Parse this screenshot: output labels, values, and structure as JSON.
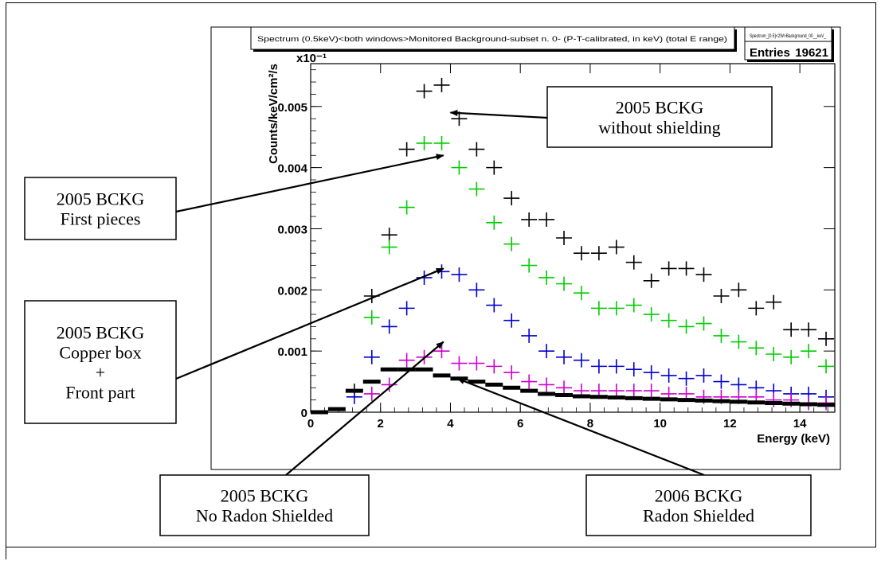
{
  "chart_data": {
    "type": "scatter",
    "title": "Spectrum (0.5keV)<both windows>Monitored Background-subset n. 0- (P-T-calibrated, in keV) (total E range)",
    "stats": {
      "name": "Spectrum_[0.5]<2W>Background_00__keV_",
      "entries_label": "Entries",
      "entries_value": "19621"
    },
    "xlabel": "Energy  (keV)",
    "ylabel": "Counts/keV/cm²/s",
    "y_exponent": "x10⁻¹",
    "xlim": [
      0,
      15
    ],
    "ylim": [
      0,
      0.0057
    ],
    "x_ticks": [
      "0",
      "2",
      "4",
      "6",
      "8",
      "10",
      "12",
      "14"
    ],
    "y_ticks": [
      "0",
      "0.001",
      "0.002",
      "0.003",
      "0.004",
      "0.005"
    ],
    "bin_width": 0.5,
    "series": [
      {
        "color": "#000000",
        "style": "cross",
        "x": [
          1.25,
          1.75,
          2.25,
          2.75,
          3.25,
          3.75,
          4.25,
          4.75,
          5.25,
          5.75,
          6.25,
          6.75,
          7.25,
          7.75,
          8.25,
          8.75,
          9.25,
          9.75,
          10.25,
          10.75,
          11.25,
          11.75,
          12.25,
          12.75,
          13.25,
          13.75,
          14.25,
          14.75
        ],
        "y": [
          0.00035,
          0.0019,
          0.0029,
          0.0043,
          0.00525,
          0.00535,
          0.0048,
          0.0043,
          0.004,
          0.0035,
          0.00315,
          0.00315,
          0.00285,
          0.0026,
          0.0026,
          0.0027,
          0.00245,
          0.00215,
          0.00235,
          0.00235,
          0.00225,
          0.0019,
          0.002,
          0.0017,
          0.0018,
          0.00135,
          0.00135,
          0.0012
        ]
      },
      {
        "color": "#00cc00",
        "style": "cross",
        "x": [
          1.75,
          2.25,
          2.75,
          3.25,
          3.75,
          4.25,
          4.75,
          5.25,
          5.75,
          6.25,
          6.75,
          7.25,
          7.75,
          8.25,
          8.75,
          9.25,
          9.75,
          10.25,
          10.75,
          11.25,
          11.75,
          12.25,
          12.75,
          13.25,
          13.75,
          14.25,
          14.75
        ],
        "y": [
          0.00155,
          0.0027,
          0.00335,
          0.0044,
          0.0044,
          0.004,
          0.00365,
          0.0031,
          0.00275,
          0.0024,
          0.0022,
          0.0021,
          0.00195,
          0.0017,
          0.0017,
          0.00175,
          0.0016,
          0.0015,
          0.0014,
          0.00145,
          0.00125,
          0.00115,
          0.00105,
          0.00095,
          0.0009,
          0.001,
          0.00075
        ]
      },
      {
        "color": "#0000cc",
        "style": "cross",
        "x": [
          1.25,
          1.75,
          2.25,
          2.75,
          3.25,
          3.75,
          4.25,
          4.75,
          5.25,
          5.75,
          6.25,
          6.75,
          7.25,
          7.75,
          8.25,
          8.75,
          9.25,
          9.75,
          10.25,
          10.75,
          11.25,
          11.75,
          12.25,
          12.75,
          13.25,
          13.75,
          14.25,
          14.75
        ],
        "y": [
          0.00025,
          0.0009,
          0.0014,
          0.0017,
          0.0022,
          0.0023,
          0.00225,
          0.002,
          0.00175,
          0.0015,
          0.00125,
          0.001,
          0.0009,
          0.00085,
          0.00075,
          0.00075,
          0.0007,
          0.00065,
          0.0006,
          0.00055,
          0.0006,
          0.0005,
          0.00045,
          0.0004,
          0.00035,
          0.0003,
          0.0003,
          0.00025
        ]
      },
      {
        "color": "#cc00cc",
        "style": "cross",
        "x": [
          1.75,
          2.25,
          2.75,
          3.25,
          3.75,
          4.25,
          4.75,
          5.25,
          5.75,
          6.25,
          6.75,
          7.25,
          7.75,
          8.25,
          8.75,
          9.25,
          9.75,
          10.25,
          10.75,
          11.25,
          11.75,
          12.25,
          12.75,
          13.25,
          13.75,
          14.25,
          14.75
        ],
        "y": [
          0.0003,
          0.00045,
          0.00085,
          0.0009,
          0.001,
          0.0008,
          0.0008,
          0.00075,
          0.00065,
          0.0005,
          0.00045,
          0.0004,
          0.00035,
          0.00035,
          0.00035,
          0.00035,
          0.00035,
          0.0003,
          0.0003,
          0.00025,
          0.00025,
          0.00025,
          0.00025,
          0.0002,
          0.0002,
          0.00015,
          0.00015
        ]
      },
      {
        "color": "#000000",
        "style": "bar",
        "x": [
          0.25,
          0.75,
          1.25,
          1.75,
          2.25,
          2.75,
          3.25,
          3.75,
          4.25,
          4.75,
          5.25,
          5.75,
          6.25,
          6.75,
          7.25,
          7.75,
          8.25,
          8.75,
          9.25,
          9.75,
          10.25,
          10.75,
          11.25,
          11.75,
          12.25,
          12.75,
          13.25,
          13.75,
          14.25,
          14.75
        ],
        "y": [
          0.0,
          5e-05,
          0.00035,
          0.0005,
          0.0007,
          0.0007,
          0.0007,
          0.0006,
          0.00055,
          0.0005,
          0.00045,
          0.0004,
          0.00035,
          0.0003,
          0.00028,
          0.00026,
          0.00025,
          0.00024,
          0.00023,
          0.00022,
          0.00021,
          0.0002,
          0.00019,
          0.00018,
          0.00017,
          0.00016,
          0.00015,
          0.00014,
          0.00013,
          0.00012
        ]
      }
    ],
    "annotations": [
      {
        "lines": [
          "2005 BCKG",
          "without shielding"
        ],
        "target": [
          4.0,
          0.0049
        ]
      },
      {
        "lines": [
          "2005 BCKG",
          "First pieces"
        ],
        "target": [
          3.8,
          0.0042
        ]
      },
      {
        "lines": [
          "2005 BCKG",
          "Copper box",
          "+",
          "Front part"
        ],
        "target": [
          3.8,
          0.00235
        ]
      },
      {
        "lines": [
          "2005 BCKG",
          "No Radon Shielded"
        ],
        "target": [
          3.8,
          0.00115
        ]
      },
      {
        "lines": [
          "2006 BCKG",
          "Radon Shielded"
        ],
        "target": [
          4.2,
          0.00055
        ]
      }
    ]
  }
}
